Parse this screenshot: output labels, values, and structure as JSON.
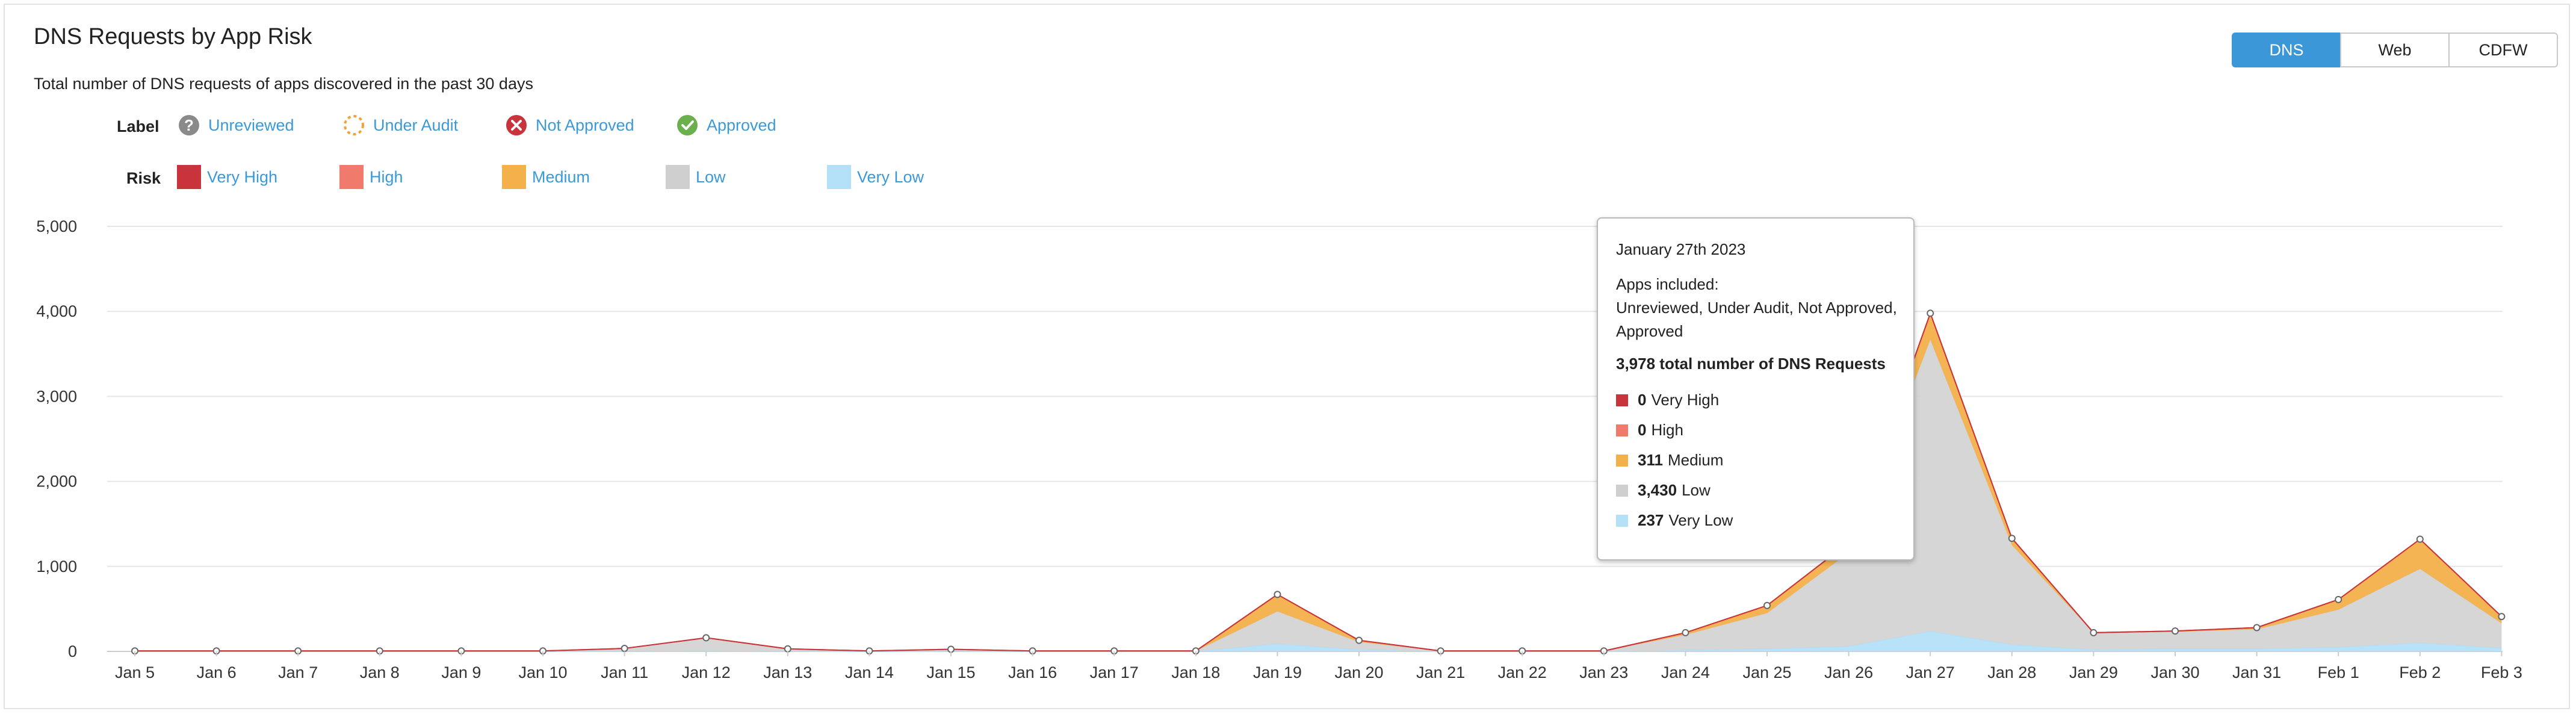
{
  "header": {
    "title": "DNS Requests by App Risk",
    "subtitle": "Total number of DNS requests of apps discovered in the past 30 days"
  },
  "tabs": [
    {
      "label": "DNS",
      "active": true
    },
    {
      "label": "Web",
      "active": false
    },
    {
      "label": "CDFW",
      "active": false
    }
  ],
  "legend": {
    "label_heading": "Label",
    "risk_heading": "Risk",
    "labels": [
      {
        "text": "Unreviewed",
        "icon": "question-circle-icon",
        "color": "#8a8a8a"
      },
      {
        "text": "Under Audit",
        "icon": "dashed-circle-icon",
        "color": "#f0a23b"
      },
      {
        "text": "Not Approved",
        "icon": "x-circle-icon",
        "color": "#c8333c"
      },
      {
        "text": "Approved",
        "icon": "check-circle-icon",
        "color": "#6ab04c"
      }
    ],
    "risks": [
      {
        "text": "Very High",
        "color": "#c8333c"
      },
      {
        "text": "High",
        "color": "#f07b6c"
      },
      {
        "text": "Medium",
        "color": "#f4b04a"
      },
      {
        "text": "Low",
        "color": "#cfcfcf"
      },
      {
        "text": "Very Low",
        "color": "#b3e0f7"
      }
    ]
  },
  "chart_data": {
    "type": "area",
    "stacked": true,
    "categories": [
      "Jan 5",
      "Jan 6",
      "Jan 7",
      "Jan 8",
      "Jan 9",
      "Jan 10",
      "Jan 11",
      "Jan 12",
      "Jan 13",
      "Jan 14",
      "Jan 15",
      "Jan 16",
      "Jan 17",
      "Jan 18",
      "Jan 19",
      "Jan 20",
      "Jan 21",
      "Jan 22",
      "Jan 23",
      "Jan 24",
      "Jan 25",
      "Jan 26",
      "Jan 27",
      "Jan 28",
      "Jan 29",
      "Jan 30",
      "Jan 31",
      "Feb 1",
      "Feb 2",
      "Feb 3"
    ],
    "y_ticks": [
      0,
      1000,
      2000,
      3000,
      4000,
      5000
    ],
    "y_tick_labels": [
      "0",
      "1,000",
      "2,000",
      "3,000",
      "4,000",
      "5,000"
    ],
    "ylim": [
      0,
      5000
    ],
    "grid": true,
    "series": [
      {
        "name": "Very Low",
        "color": "#b3e0f7",
        "values": [
          0,
          0,
          0,
          0,
          0,
          0,
          5,
          10,
          5,
          0,
          5,
          0,
          0,
          0,
          90,
          20,
          0,
          0,
          0,
          15,
          30,
          60,
          237,
          80,
          20,
          30,
          30,
          50,
          100,
          40
        ]
      },
      {
        "name": "Low",
        "color": "#d4d4d4",
        "values": [
          5,
          5,
          5,
          5,
          5,
          5,
          30,
          150,
          25,
          5,
          20,
          5,
          5,
          5,
          380,
          90,
          5,
          5,
          5,
          180,
          420,
          1100,
          3430,
          1170,
          200,
          200,
          230,
          440,
          870,
          290
        ]
      },
      {
        "name": "Medium",
        "color": "#f4b04a",
        "values": [
          0,
          0,
          0,
          0,
          0,
          0,
          0,
          0,
          0,
          0,
          0,
          0,
          0,
          0,
          200,
          20,
          0,
          0,
          0,
          25,
          90,
          120,
          311,
          80,
          0,
          10,
          20,
          120,
          350,
          80
        ]
      },
      {
        "name": "High",
        "color": "#f07b6c",
        "values": [
          0,
          0,
          0,
          0,
          0,
          0,
          0,
          0,
          0,
          0,
          0,
          0,
          0,
          0,
          0,
          0,
          0,
          0,
          0,
          0,
          0,
          0,
          0,
          0,
          0,
          0,
          0,
          0,
          0,
          0
        ]
      },
      {
        "name": "Very High",
        "color": "#c8333c",
        "values": [
          0,
          0,
          0,
          0,
          0,
          0,
          0,
          0,
          0,
          0,
          0,
          0,
          0,
          0,
          0,
          0,
          0,
          0,
          0,
          0,
          0,
          0,
          0,
          0,
          0,
          0,
          0,
          0,
          0,
          0
        ]
      }
    ]
  },
  "tooltip": {
    "date": "January 27th 2023",
    "apps_heading": "Apps included:",
    "apps_list": "Unreviewed, Under Audit, Not Approved, Approved",
    "total": "3,978 total number of DNS Requests",
    "rows": [
      {
        "value": "0",
        "label": "Very High",
        "color": "#c8333c"
      },
      {
        "value": "0",
        "label": "High",
        "color": "#f07b6c"
      },
      {
        "value": "311",
        "label": "Medium",
        "color": "#f4b04a"
      },
      {
        "value": "3,430",
        "label": "Low",
        "color": "#cfcfcf"
      },
      {
        "value": "237",
        "label": "Very Low",
        "color": "#b3e0f7"
      }
    ]
  }
}
